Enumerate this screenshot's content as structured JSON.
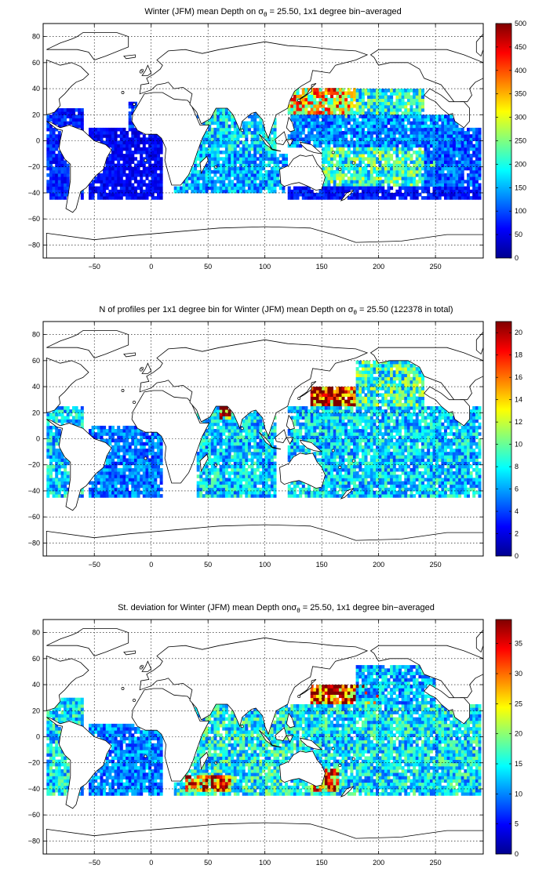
{
  "chart_data": [
    {
      "type": "heatmap",
      "title_pre": "Winter (JFM) mean Depth on ",
      "title_sigma": "σ",
      "title_sub": "θ",
      "title_post": " = 25.50, 1x1 degree bin−averaged",
      "x_ticks": [
        -50,
        0,
        50,
        100,
        150,
        200,
        250
      ],
      "y_ticks": [
        -80,
        -60,
        -40,
        -20,
        0,
        20,
        40,
        60,
        80
      ],
      "xlim": [
        -95,
        292
      ],
      "ylim": [
        -90,
        90
      ],
      "grid": true,
      "colorbar_ticks": [
        0,
        50,
        100,
        150,
        200,
        250,
        300,
        350,
        400,
        450,
        500
      ],
      "clim": [
        0,
        500
      ],
      "colormap": "jet",
      "regions": [
        {
          "lon": [
            -92,
            -60
          ],
          "lat": [
            -45,
            25
          ],
          "value": 80
        },
        {
          "lon": [
            -55,
            10
          ],
          "lat": [
            -45,
            10
          ],
          "value": 60
        },
        {
          "lon": [
            -20,
            -5
          ],
          "lat": [
            10,
            28
          ],
          "value": 90
        },
        {
          "lon": [
            40,
            110
          ],
          "lat": [
            -10,
            25
          ],
          "value": 170
        },
        {
          "lon": [
            20,
            120
          ],
          "lat": [
            -40,
            -10
          ],
          "value": 150
        },
        {
          "lon": [
            120,
            180
          ],
          "lat": [
            18,
            40
          ],
          "value": 330
        },
        {
          "lon": [
            180,
            240
          ],
          "lat": [
            20,
            40
          ],
          "value": 200
        },
        {
          "lon": [
            120,
            270
          ],
          "lat": [
            -5,
            18
          ],
          "value": 130
        },
        {
          "lon": [
            150,
            260
          ],
          "lat": [
            -35,
            -5
          ],
          "value": 210
        },
        {
          "lon": [
            120,
            290
          ],
          "lat": [
            -45,
            -35
          ],
          "value": 70
        },
        {
          "lon": [
            240,
            290
          ],
          "lat": [
            -35,
            10
          ],
          "value": 110
        }
      ]
    },
    {
      "type": "heatmap",
      "title_pre": "N of profiles per 1x1 degree bin for Winter (JFM) mean Depth on ",
      "title_sigma": "σ",
      "title_sub": "θ",
      "title_post": " = 25.50 (122378 in total)",
      "x_ticks": [
        -50,
        0,
        50,
        100,
        150,
        200,
        250
      ],
      "y_ticks": [
        -80,
        -60,
        -40,
        -20,
        0,
        20,
        40,
        60,
        80
      ],
      "xlim": [
        -95,
        292
      ],
      "ylim": [
        -90,
        90
      ],
      "grid": true,
      "colorbar_ticks": [
        0,
        2,
        4,
        6,
        8,
        10,
        12,
        14,
        16,
        18,
        20
      ],
      "clim": [
        0,
        21
      ],
      "colormap": "jet",
      "regions": [
        {
          "lon": [
            -92,
            -60
          ],
          "lat": [
            -45,
            25
          ],
          "value": 7
        },
        {
          "lon": [
            -55,
            10
          ],
          "lat": [
            -45,
            10
          ],
          "value": 5
        },
        {
          "lon": [
            40,
            110
          ],
          "lat": [
            -45,
            25
          ],
          "value": 7
        },
        {
          "lon": [
            60,
            70
          ],
          "lat": [
            15,
            25
          ],
          "value": 19
        },
        {
          "lon": [
            140,
            180
          ],
          "lat": [
            25,
            40
          ],
          "value": 19
        },
        {
          "lon": [
            120,
            290
          ],
          "lat": [
            -45,
            25
          ],
          "value": 7
        },
        {
          "lon": [
            180,
            240
          ],
          "lat": [
            25,
            60
          ],
          "value": 9
        }
      ]
    },
    {
      "type": "heatmap",
      "title_pre": "St. deviation for Winter (JFM) mean Depth on",
      "title_sigma": "σ",
      "title_sub": "θ",
      "title_post": " = 25.50, 1x1 degree bin−averaged",
      "x_ticks": [
        -50,
        0,
        50,
        100,
        150,
        200,
        250
      ],
      "y_ticks": [
        -80,
        -60,
        -40,
        -20,
        0,
        20,
        40,
        60,
        80
      ],
      "xlim": [
        -95,
        292
      ],
      "ylim": [
        -90,
        90
      ],
      "grid": true,
      "colorbar_ticks": [
        0,
        5,
        10,
        15,
        20,
        25,
        30,
        35
      ],
      "clim": [
        0,
        39
      ],
      "colormap": "jet",
      "regions": [
        {
          "lon": [
            -92,
            -60
          ],
          "lat": [
            -45,
            30
          ],
          "value": 14
        },
        {
          "lon": [
            -55,
            10
          ],
          "lat": [
            -45,
            10
          ],
          "value": 10
        },
        {
          "lon": [
            20,
            120
          ],
          "lat": [
            -45,
            25
          ],
          "value": 15
        },
        {
          "lon": [
            30,
            70
          ],
          "lat": [
            -42,
            -30
          ],
          "value": 30
        },
        {
          "lon": [
            140,
            200
          ],
          "lat": [
            25,
            40
          ],
          "value": 36
        },
        {
          "lon": [
            120,
            290
          ],
          "lat": [
            -45,
            25
          ],
          "value": 14
        },
        {
          "lon": [
            140,
            165
          ],
          "lat": [
            -42,
            -25
          ],
          "value": 30
        },
        {
          "lon": [
            180,
            250
          ],
          "lat": [
            25,
            55
          ],
          "value": 12
        }
      ]
    }
  ]
}
